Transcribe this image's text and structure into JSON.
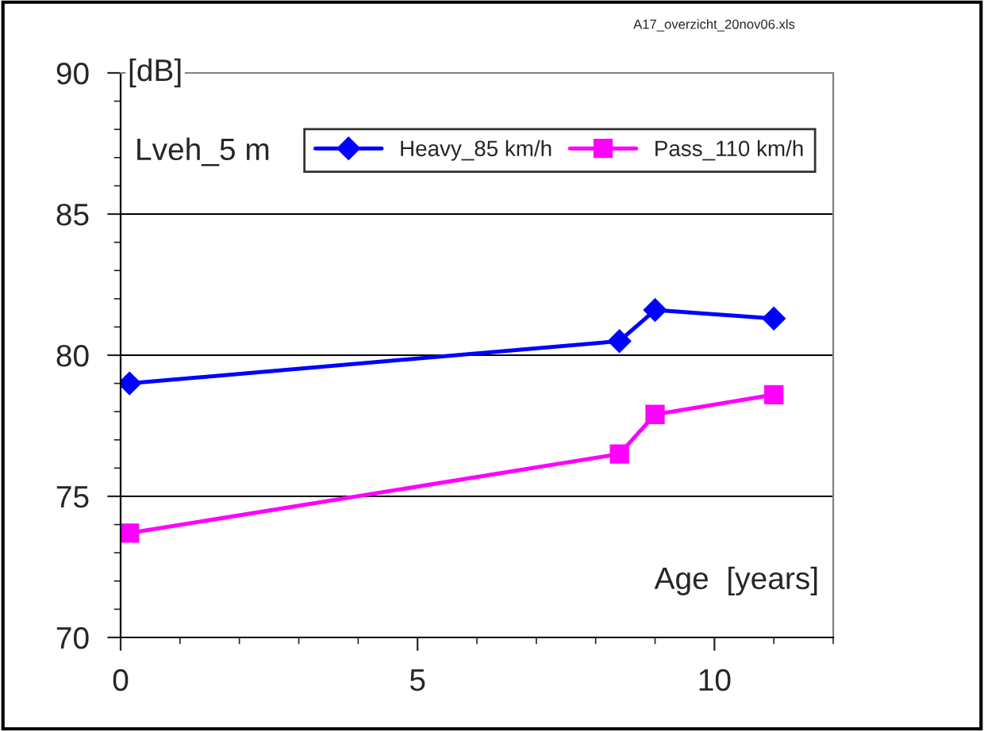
{
  "chart_data": {
    "type": "line",
    "xlabel": "Age  [years]",
    "ylabel": "[dB]",
    "annotations": [
      "Lveh_5 m",
      "A17_overzicht_20nov06.xls"
    ],
    "x": [
      0.15,
      8.4,
      9.0,
      11.0
    ],
    "series": [
      {
        "name": "Heavy_85 km/h",
        "color": "#0000ff",
        "marker": "diamond",
        "values": [
          79.0,
          80.5,
          81.6,
          81.3
        ]
      },
      {
        "name": "Pass_110 km/h",
        "color": "#ff00ff",
        "marker": "square",
        "values": [
          73.7,
          76.5,
          77.9,
          78.6
        ]
      }
    ],
    "xlim": [
      0,
      12
    ],
    "xticks": [
      0,
      5,
      10
    ],
    "ylim": [
      70,
      90
    ],
    "yticks": [
      70,
      75,
      80,
      85,
      90
    ],
    "grid": "y",
    "legend": "top right",
    "line_style": "solid"
  }
}
